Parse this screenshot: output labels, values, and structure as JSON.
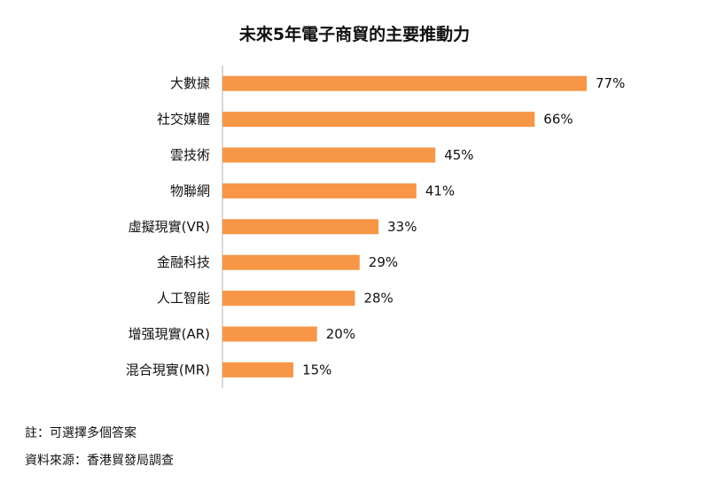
{
  "chart_data": {
    "type": "bar",
    "orientation": "horizontal",
    "title": "未來5年電子商貿的主要推動力",
    "categories": [
      "大數據",
      "社交媒體",
      "雲技術",
      "物聯網",
      "虛擬現實(VR)",
      "金融科技",
      "人工智能",
      "增强現實(AR)",
      "混合現實(MR)"
    ],
    "values": [
      77,
      66,
      45,
      41,
      33,
      29,
      28,
      20,
      15
    ],
    "value_labels": [
      "77%",
      "66%",
      "45%",
      "41%",
      "33%",
      "29%",
      "28%",
      "20%",
      "15%"
    ],
    "unit": "%",
    "xlim": [
      0,
      80
    ],
    "grid": false,
    "legend": "none",
    "bar_color": "#f79646"
  },
  "notes": {
    "note1": "註：可選擇多個答案",
    "source": "資料來源：香港貿發局調查"
  }
}
